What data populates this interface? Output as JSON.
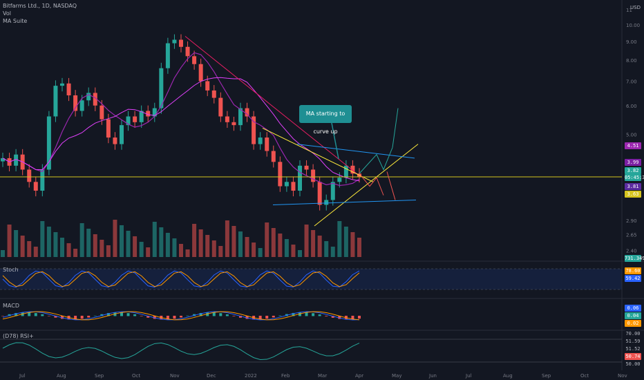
{
  "header": {
    "symbol": "Bitfarms Ltd., 1D, NASDAQ",
    "vol": "Vol",
    "ma": "MA Suite",
    "currency": "USD"
  },
  "annotation": "MA starting to curve up",
  "panes": {
    "stoch": "Stoch",
    "macd": "MACD",
    "rsi": "(D78) RSI+"
  },
  "price_tags": [
    {
      "text": "4.51",
      "color": "#9c27b0"
    },
    {
      "text": "3.99",
      "color": "#7b1fa2"
    },
    {
      "text": "3.82",
      "color": "#26a69a"
    },
    {
      "text": "05:45:32",
      "color": "#26a69a"
    },
    {
      "text": "3.81",
      "color": "#5b2ca0"
    },
    {
      "text": "3.63",
      "color": "#d6c41f"
    },
    {
      "text": "731.349K",
      "color": "#26a69a"
    }
  ],
  "stoch_tags": [
    {
      "text": "78.60",
      "color": "#ff9800"
    },
    {
      "text": "59.42",
      "color": "#2962ff"
    }
  ],
  "macd_tags": [
    {
      "text": "0.06",
      "color": "#2962ff"
    },
    {
      "text": "0.04",
      "color": "#26a69a"
    },
    {
      "text": "0.02",
      "color": "#ff9800"
    }
  ],
  "rsi_tags": [
    {
      "text": "70.00",
      "color": "#131722"
    },
    {
      "text": "51.59",
      "color": "#131722"
    },
    {
      "text": "51.52",
      "color": "#131722"
    },
    {
      "text": "50.74",
      "color": "#ef5350"
    },
    {
      "text": "50.00",
      "color": "#131722"
    }
  ],
  "chart_data": {
    "type": "candlestick",
    "title": "Bitfarms Ltd., 1D, NASDAQ",
    "y_scale": "log",
    "y_ticks": [
      11,
      10,
      9,
      8,
      7,
      6,
      5,
      4,
      3.6,
      2.9,
      2.65,
      2.4
    ],
    "y_tick_labels": [
      "11",
      "10.00",
      "9.00",
      "8.00",
      "7.00",
      "6.00",
      "5.00",
      "4.00",
      "3.60",
      "2.90",
      "2.65",
      "2.40"
    ],
    "x_tick_labels": [
      "Jul",
      "Aug",
      "Sep",
      "Oct",
      "Nov",
      "Dec",
      "2022",
      "Feb",
      "Mar",
      "Apr",
      "May",
      "Jun",
      "Jul",
      "Aug",
      "Sep",
      "Oct",
      "Nov"
    ],
    "close_series": [
      4.3,
      4.1,
      4.4,
      4.0,
      3.7,
      3.5,
      4.0,
      5.6,
      6.8,
      6.9,
      6.4,
      5.8,
      6.2,
      6.5,
      6.0,
      5.5,
      4.9,
      4.7,
      5.3,
      5.6,
      5.4,
      5.8,
      5.6,
      5.9,
      7.6,
      8.9,
      9.1,
      8.7,
      8.2,
      7.8,
      7.0,
      6.6,
      6.3,
      5.6,
      5.4,
      5.3,
      5.9,
      5.6,
      4.7,
      4.9,
      4.5,
      4.2,
      3.6,
      3.7,
      3.5,
      4.1,
      4.0,
      3.7,
      3.2,
      3.3,
      3.7,
      3.8,
      4.1,
      3.9,
      3.82
    ],
    "last_price": 3.82,
    "annotations": [
      "MA starting to curve up"
    ]
  }
}
